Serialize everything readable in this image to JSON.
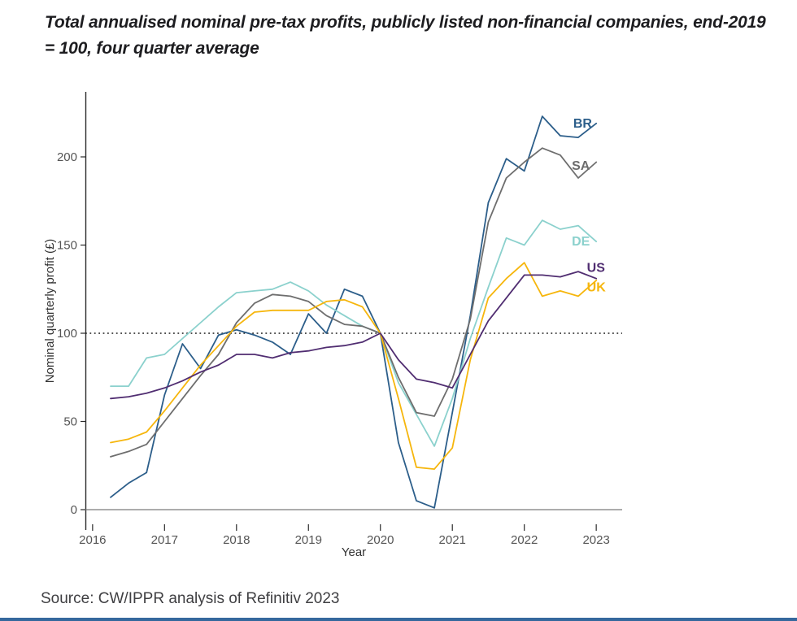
{
  "title": "Total annualised nominal pre-tax profits, publicly listed non-financial companies, end-2019 = 100, four quarter average",
  "source": "Source: CW/IPPR analysis of Refinitiv 2023",
  "chart_data": {
    "type": "line",
    "title": "Total annualised nominal pre-tax profits, publicly listed non-financial companies, end-2019 = 100, four quarter average",
    "xlabel": "Year",
    "ylabel": "Nominal quarterly profit (£)",
    "x_ticks": [
      2016,
      2017,
      2018,
      2019,
      2020,
      2021,
      2022,
      2023
    ],
    "y_ticks": [
      0,
      50,
      100,
      150,
      200
    ],
    "xlim": [
      2015.9,
      2023.36
    ],
    "ylim": [
      -11.5,
      237
    ],
    "grid": false,
    "legend_position": "end-of-line-labels",
    "reference_line_y": 100,
    "zero_line": true,
    "x": [
      2016.25,
      2016.5,
      2016.75,
      2017.0,
      2017.25,
      2017.5,
      2017.75,
      2018.0,
      2018.25,
      2018.5,
      2018.75,
      2019.0,
      2019.25,
      2019.5,
      2019.75,
      2020.0,
      2020.25,
      2020.5,
      2020.75,
      2021.0,
      2021.25,
      2021.5,
      2021.75,
      2022.0,
      2022.25,
      2022.5,
      2022.75,
      2023.0
    ],
    "series": [
      {
        "name": "BR",
        "color": "#2c5e8a",
        "values": [
          7,
          15,
          21,
          65,
          94,
          80,
          99,
          102,
          99,
          95,
          88,
          111,
          100,
          125,
          121,
          100,
          38,
          5,
          1,
          55,
          110,
          174,
          199,
          192,
          223,
          212,
          211,
          219
        ],
        "label_pos": {
          "x": 2022.68,
          "y": 219
        }
      },
      {
        "name": "DE",
        "color": "#8bd1cd",
        "values": [
          70,
          70,
          86,
          88,
          97,
          106,
          115,
          123,
          124,
          125,
          129,
          124,
          116,
          110,
          104,
          100,
          72,
          54,
          36,
          63,
          97,
          126,
          154,
          150,
          164,
          159,
          161,
          152
        ],
        "label_pos": {
          "x": 2022.66,
          "y": 152
        }
      },
      {
        "name": "SA",
        "color": "#6e6e6e",
        "values": [
          30,
          33,
          37,
          50,
          63,
          76,
          88,
          106,
          117,
          122,
          121,
          118,
          110,
          105,
          104,
          100,
          75,
          55,
          53,
          74,
          108,
          163,
          188,
          197,
          205,
          201,
          188,
          197
        ],
        "label_pos": {
          "x": 2022.66,
          "y": 195
        }
      },
      {
        "name": "UK",
        "color": "#f6b60d",
        "values": [
          38,
          40,
          44,
          56,
          69,
          82,
          93,
          104,
          112,
          113,
          113,
          113,
          118,
          119,
          115,
          100,
          63,
          24,
          23,
          35,
          85,
          120,
          131,
          140,
          121,
          124,
          121,
          130
        ],
        "label_pos": {
          "x": 2022.87,
          "y": 126
        }
      },
      {
        "name": "US",
        "color": "#502d71",
        "values": [
          63,
          64,
          66,
          69,
          73,
          78,
          82,
          88,
          88,
          86,
          89,
          90,
          92,
          93,
          95,
          100,
          85,
          74,
          72,
          69,
          88,
          107,
          120,
          133,
          133,
          132,
          135,
          131
        ],
        "label_pos": {
          "x": 2022.87,
          "y": 137
        }
      }
    ]
  }
}
